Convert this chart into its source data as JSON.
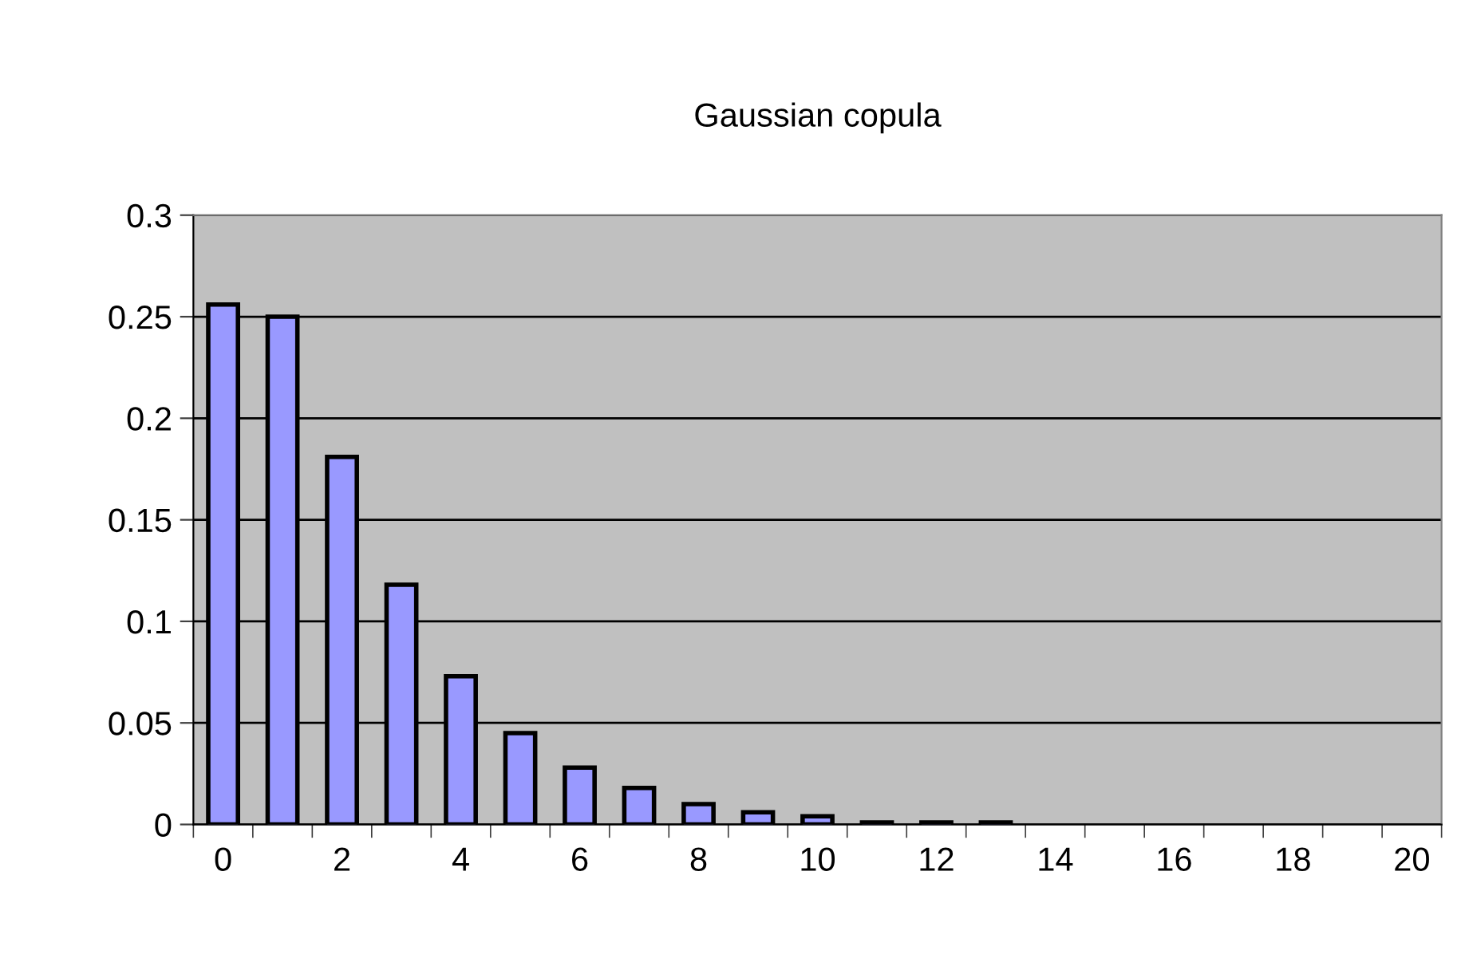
{
  "chart_data": {
    "type": "bar",
    "title": "Gaussian copula",
    "categories": [
      "0",
      null,
      "2",
      null,
      "4",
      null,
      "6",
      null,
      "8",
      null,
      "10",
      null,
      "12",
      null,
      "14",
      null,
      "16",
      null,
      "18",
      null,
      "20"
    ],
    "values": [
      0.256,
      0.25,
      0.181,
      0.118,
      0.073,
      0.045,
      0.028,
      0.018,
      0.01,
      0.006,
      0.004,
      0.001,
      0.001,
      0.001,
      null,
      null,
      null,
      null,
      null,
      null,
      null
    ],
    "color": "#9999ff",
    "ylim": [
      0,
      0.3
    ],
    "yticks": [
      0,
      0.05,
      0.1,
      0.15,
      0.2,
      0.25,
      0.3
    ],
    "grid": "y"
  }
}
